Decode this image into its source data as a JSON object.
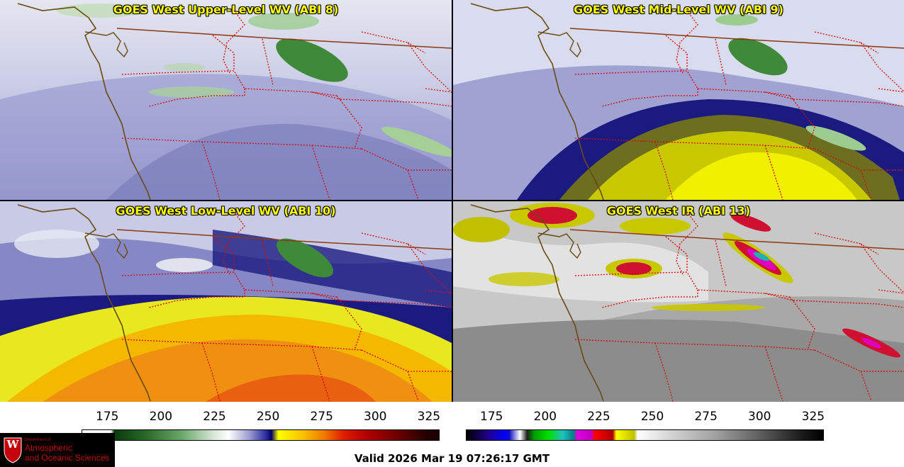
{
  "panels": {
    "upper": {
      "title": "GOES West Upper-Level WV (ABI 8)"
    },
    "mid": {
      "title": "GOES West Mid-Level WV (ABI 9)"
    },
    "low": {
      "title": "GOES West Low-Level WV (ABI 10)"
    },
    "ir": {
      "title": "GOES West IR (ABI 13)"
    }
  },
  "colorbars": {
    "wv": {
      "ticks": [
        "175",
        "200",
        "225",
        "250",
        "275",
        "300",
        "325"
      ],
      "range": [
        163,
        330
      ]
    },
    "ir": {
      "ticks": [
        "175",
        "200",
        "225",
        "250",
        "275",
        "300",
        "325"
      ],
      "range": [
        163,
        330
      ]
    }
  },
  "logo": {
    "line1": "Department of",
    "line2": "Atmospheric",
    "line3": "and Oceanic Sciences",
    "letter": "W"
  },
  "valid_time": "Valid 2026 Mar 19 07:26:17 GMT",
  "colors": {
    "border_state": "#e00000",
    "border_country": "#8b3a0f",
    "coast": "#6b4a10",
    "title": "#ffff00",
    "logo_red": "#c5050c"
  }
}
